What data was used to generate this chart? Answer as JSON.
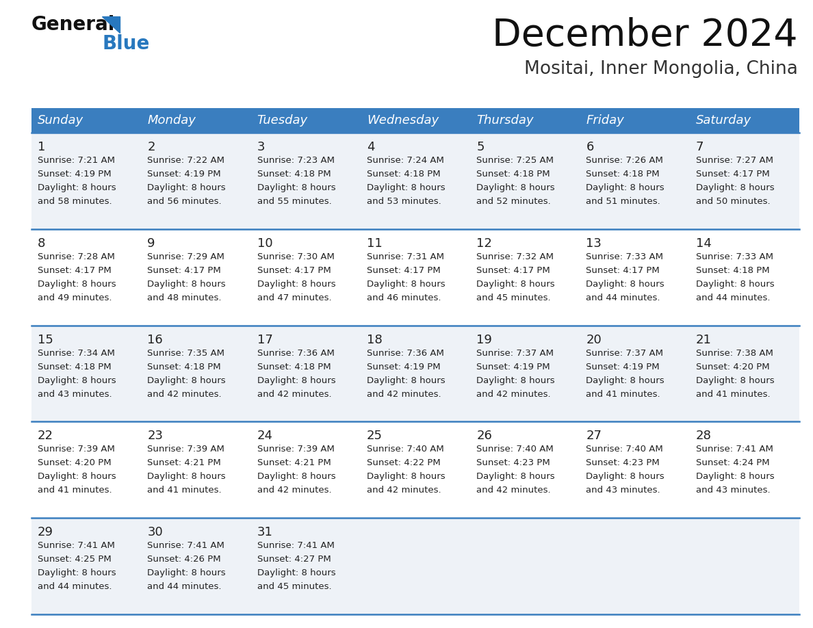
{
  "title": "December 2024",
  "subtitle": "Mositai, Inner Mongolia, China",
  "days_of_week": [
    "Sunday",
    "Monday",
    "Tuesday",
    "Wednesday",
    "Thursday",
    "Friday",
    "Saturday"
  ],
  "header_bg": "#3a7ebf",
  "header_text": "#ffffff",
  "row_bg_odd": "#eef2f7",
  "row_bg_even": "#ffffff",
  "cell_text_color": "#222222",
  "day_num_color": "#222222",
  "separator_color": "#3a7ebf",
  "logo_text_color": "#1a1a1a",
  "logo_blue_color": "#2878be",
  "calendar_data": [
    [
      {
        "day": 1,
        "sunrise": "7:21 AM",
        "sunset": "4:19 PM",
        "daylight": "8 hours and 58 minutes"
      },
      {
        "day": 2,
        "sunrise": "7:22 AM",
        "sunset": "4:19 PM",
        "daylight": "8 hours and 56 minutes"
      },
      {
        "day": 3,
        "sunrise": "7:23 AM",
        "sunset": "4:18 PM",
        "daylight": "8 hours and 55 minutes"
      },
      {
        "day": 4,
        "sunrise": "7:24 AM",
        "sunset": "4:18 PM",
        "daylight": "8 hours and 53 minutes"
      },
      {
        "day": 5,
        "sunrise": "7:25 AM",
        "sunset": "4:18 PM",
        "daylight": "8 hours and 52 minutes"
      },
      {
        "day": 6,
        "sunrise": "7:26 AM",
        "sunset": "4:18 PM",
        "daylight": "8 hours and 51 minutes"
      },
      {
        "day": 7,
        "sunrise": "7:27 AM",
        "sunset": "4:17 PM",
        "daylight": "8 hours and 50 minutes"
      }
    ],
    [
      {
        "day": 8,
        "sunrise": "7:28 AM",
        "sunset": "4:17 PM",
        "daylight": "8 hours and 49 minutes"
      },
      {
        "day": 9,
        "sunrise": "7:29 AM",
        "sunset": "4:17 PM",
        "daylight": "8 hours and 48 minutes"
      },
      {
        "day": 10,
        "sunrise": "7:30 AM",
        "sunset": "4:17 PM",
        "daylight": "8 hours and 47 minutes"
      },
      {
        "day": 11,
        "sunrise": "7:31 AM",
        "sunset": "4:17 PM",
        "daylight": "8 hours and 46 minutes"
      },
      {
        "day": 12,
        "sunrise": "7:32 AM",
        "sunset": "4:17 PM",
        "daylight": "8 hours and 45 minutes"
      },
      {
        "day": 13,
        "sunrise": "7:33 AM",
        "sunset": "4:17 PM",
        "daylight": "8 hours and 44 minutes"
      },
      {
        "day": 14,
        "sunrise": "7:33 AM",
        "sunset": "4:18 PM",
        "daylight": "8 hours and 44 minutes"
      }
    ],
    [
      {
        "day": 15,
        "sunrise": "7:34 AM",
        "sunset": "4:18 PM",
        "daylight": "8 hours and 43 minutes"
      },
      {
        "day": 16,
        "sunrise": "7:35 AM",
        "sunset": "4:18 PM",
        "daylight": "8 hours and 42 minutes"
      },
      {
        "day": 17,
        "sunrise": "7:36 AM",
        "sunset": "4:18 PM",
        "daylight": "8 hours and 42 minutes"
      },
      {
        "day": 18,
        "sunrise": "7:36 AM",
        "sunset": "4:19 PM",
        "daylight": "8 hours and 42 minutes"
      },
      {
        "day": 19,
        "sunrise": "7:37 AM",
        "sunset": "4:19 PM",
        "daylight": "8 hours and 42 minutes"
      },
      {
        "day": 20,
        "sunrise": "7:37 AM",
        "sunset": "4:19 PM",
        "daylight": "8 hours and 41 minutes"
      },
      {
        "day": 21,
        "sunrise": "7:38 AM",
        "sunset": "4:20 PM",
        "daylight": "8 hours and 41 minutes"
      }
    ],
    [
      {
        "day": 22,
        "sunrise": "7:39 AM",
        "sunset": "4:20 PM",
        "daylight": "8 hours and 41 minutes"
      },
      {
        "day": 23,
        "sunrise": "7:39 AM",
        "sunset": "4:21 PM",
        "daylight": "8 hours and 41 minutes"
      },
      {
        "day": 24,
        "sunrise": "7:39 AM",
        "sunset": "4:21 PM",
        "daylight": "8 hours and 42 minutes"
      },
      {
        "day": 25,
        "sunrise": "7:40 AM",
        "sunset": "4:22 PM",
        "daylight": "8 hours and 42 minutes"
      },
      {
        "day": 26,
        "sunrise": "7:40 AM",
        "sunset": "4:23 PM",
        "daylight": "8 hours and 42 minutes"
      },
      {
        "day": 27,
        "sunrise": "7:40 AM",
        "sunset": "4:23 PM",
        "daylight": "8 hours and 43 minutes"
      },
      {
        "day": 28,
        "sunrise": "7:41 AM",
        "sunset": "4:24 PM",
        "daylight": "8 hours and 43 minutes"
      }
    ],
    [
      {
        "day": 29,
        "sunrise": "7:41 AM",
        "sunset": "4:25 PM",
        "daylight": "8 hours and 44 minutes"
      },
      {
        "day": 30,
        "sunrise": "7:41 AM",
        "sunset": "4:26 PM",
        "daylight": "8 hours and 44 minutes"
      },
      {
        "day": 31,
        "sunrise": "7:41 AM",
        "sunset": "4:27 PM",
        "daylight": "8 hours and 45 minutes"
      },
      null,
      null,
      null,
      null
    ]
  ]
}
